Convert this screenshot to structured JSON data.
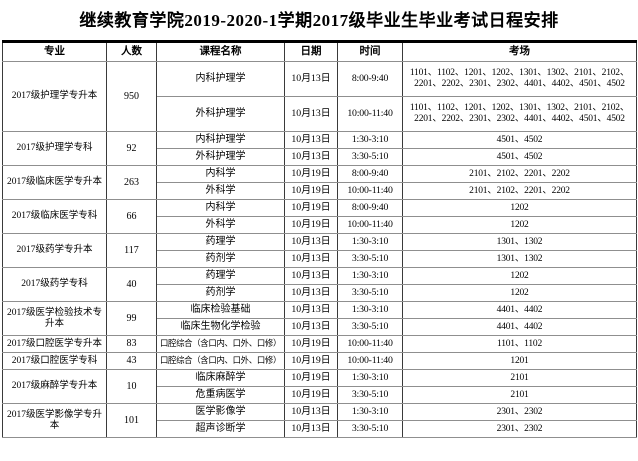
{
  "title": "继续教育学院2019-2020-1学期2017级毕业生毕业考试日程安排",
  "table": {
    "headers": [
      "专业",
      "人数",
      "课程名称",
      "日期",
      "时间",
      "考场"
    ],
    "groups": [
      {
        "major": "2017级护理学专升本",
        "count": "950",
        "tall": true,
        "rows": [
          {
            "course": "内科护理学",
            "date": "10月13日",
            "time": "8:00-9:40",
            "rooms": "1101、1102、1201、1202、1301、1302、2101、2102、2201、2202、2301、2302、4401、4402、4501、4502"
          },
          {
            "course": "外科护理学",
            "date": "10月13日",
            "time": "10:00-11:40",
            "rooms": "1101、1102、1201、1202、1301、1302、2101、2102、2201、2202、2301、2302、4401、4402、4501、4502"
          }
        ]
      },
      {
        "major": "2017级护理学专科",
        "count": "92",
        "tall": false,
        "rows": [
          {
            "course": "内科护理学",
            "date": "10月13日",
            "time": "1:30-3:10",
            "rooms": "4501、4502"
          },
          {
            "course": "外科护理学",
            "date": "10月13日",
            "time": "3:30-5:10",
            "rooms": "4501、4502"
          }
        ]
      },
      {
        "major": "2017级临床医学专升本",
        "count": "263",
        "tall": false,
        "rows": [
          {
            "course": "内科学",
            "date": "10月19日",
            "time": "8:00-9:40",
            "rooms": "2101、2102、2201、2202"
          },
          {
            "course": "外科学",
            "date": "10月19日",
            "time": "10:00-11:40",
            "rooms": "2101、2102、2201、2202"
          }
        ]
      },
      {
        "major": "2017级临床医学专科",
        "count": "66",
        "tall": false,
        "rows": [
          {
            "course": "内科学",
            "date": "10月19日",
            "time": "8:00-9:40",
            "rooms": "1202"
          },
          {
            "course": "外科学",
            "date": "10月19日",
            "time": "10:00-11:40",
            "rooms": "1202"
          }
        ]
      },
      {
        "major": "2017级药学专升本",
        "count": "117",
        "tall": false,
        "rows": [
          {
            "course": "药理学",
            "date": "10月13日",
            "time": "1:30-3:10",
            "rooms": "1301、1302"
          },
          {
            "course": "药剂学",
            "date": "10月13日",
            "time": "3:30-5:10",
            "rooms": "1301、1302"
          }
        ]
      },
      {
        "major": "2017级药学专科",
        "count": "40",
        "tall": false,
        "rows": [
          {
            "course": "药理学",
            "date": "10月13日",
            "time": "1:30-3:10",
            "rooms": "1202"
          },
          {
            "course": "药剂学",
            "date": "10月13日",
            "time": "3:30-5:10",
            "rooms": "1202"
          }
        ]
      },
      {
        "major": "2017级医学检验技术专升本",
        "count": "99",
        "tall": false,
        "rows": [
          {
            "course": "临床检验基础",
            "date": "10月13日",
            "time": "1:30-3:10",
            "rooms": "4401、4402"
          },
          {
            "course": "临床生物化学检验",
            "date": "10月13日",
            "time": "3:30-5:10",
            "rooms": "4401、4402"
          }
        ]
      },
      {
        "major": "2017级口腔医学专升本",
        "count": "83",
        "tall": false,
        "rows": [
          {
            "course": "口腔综合（含口内、口外、口修）",
            "date": "10月19日",
            "time": "10:00-11:40",
            "rooms": "1101、1102"
          }
        ]
      },
      {
        "major": "2017级口腔医学专科",
        "count": "43",
        "tall": false,
        "rows": [
          {
            "course": "口腔综合（含口内、口外、口修）",
            "date": "10月19日",
            "time": "10:00-11:40",
            "rooms": "1201"
          }
        ]
      },
      {
        "major": "2017级麻醉学专升本",
        "count": "10",
        "tall": false,
        "rows": [
          {
            "course": "临床麻醉学",
            "date": "10月19日",
            "time": "1:30-3:10",
            "rooms": "2101"
          },
          {
            "course": "危重病医学",
            "date": "10月19日",
            "time": "3:30-5:10",
            "rooms": "2101"
          }
        ]
      },
      {
        "major": "2017级医学影像学专升本",
        "count": "101",
        "tall": false,
        "rows": [
          {
            "course": "医学影像学",
            "date": "10月13日",
            "time": "1:30-3:10",
            "rooms": "2301、2302"
          },
          {
            "course": "超声诊断学",
            "date": "10月13日",
            "time": "3:30-5:10",
            "rooms": "2301、2302"
          }
        ]
      }
    ]
  }
}
